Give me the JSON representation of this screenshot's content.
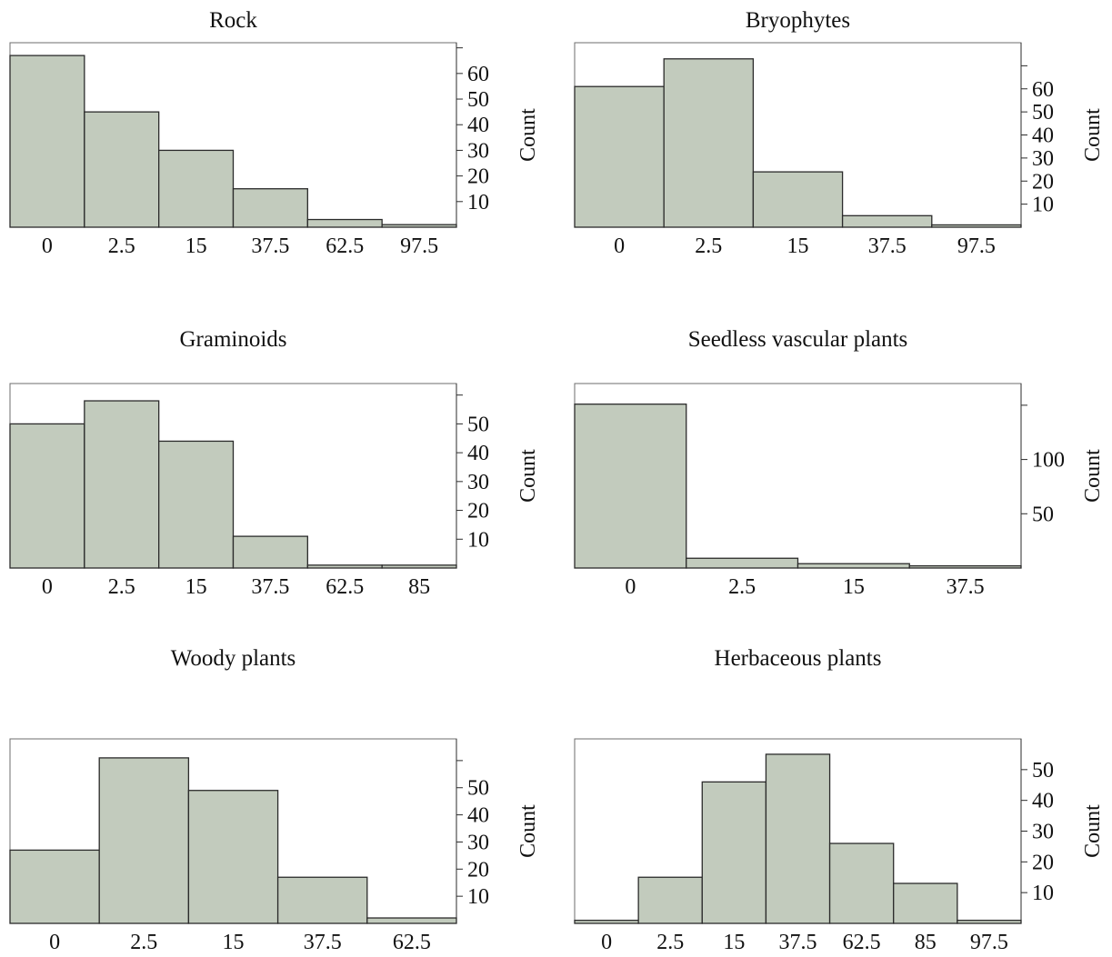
{
  "colors": {
    "bar_fill": "#c2cbbd",
    "bar_edge": "#2b2b2b",
    "frame": "#6d6d6d"
  },
  "chart_data": [
    {
      "type": "bar",
      "title": "Rock",
      "ylabel": "Count",
      "categories": [
        "0",
        "2.5",
        "15",
        "37.5",
        "62.5",
        "97.5"
      ],
      "values": [
        67,
        45,
        30,
        15,
        3,
        1
      ],
      "yticks": [
        10,
        20,
        30,
        40,
        50,
        60
      ],
      "ylim": [
        0,
        72
      ],
      "grid": false,
      "y_axis_side": "right"
    },
    {
      "type": "bar",
      "title": "Bryophytes",
      "ylabel": "Count",
      "categories": [
        "0",
        "2.5",
        "15",
        "37.5",
        "97.5"
      ],
      "values": [
        61,
        73,
        24,
        5,
        1
      ],
      "yticks": [
        10,
        20,
        30,
        40,
        50,
        60
      ],
      "ylim": [
        0,
        80
      ],
      "grid": false,
      "y_axis_side": "right"
    },
    {
      "type": "bar",
      "title": "Graminoids",
      "ylabel": "Count",
      "categories": [
        "0",
        "2.5",
        "15",
        "37.5",
        "62.5",
        "85"
      ],
      "values": [
        50,
        58,
        44,
        11,
        1,
        1
      ],
      "yticks": [
        10,
        20,
        30,
        40,
        50
      ],
      "ylim": [
        0,
        64
      ],
      "grid": false,
      "y_axis_side": "right"
    },
    {
      "type": "bar",
      "title": "Seedless vascular plants",
      "ylabel": "Count",
      "categories": [
        "0",
        "2.5",
        "15",
        "37.5"
      ],
      "values": [
        151,
        9,
        4,
        2
      ],
      "yticks": [
        50,
        100
      ],
      "ylim": [
        0,
        170
      ],
      "grid": false,
      "y_axis_side": "right"
    },
    {
      "type": "bar",
      "title": "Woody plants",
      "ylabel": "Count",
      "categories": [
        "0",
        "2.5",
        "15",
        "37.5",
        "62.5"
      ],
      "values": [
        27,
        61,
        49,
        17,
        2
      ],
      "yticks": [
        10,
        20,
        30,
        40,
        50
      ],
      "ylim": [
        0,
        68
      ],
      "grid": false,
      "y_axis_side": "right"
    },
    {
      "type": "bar",
      "title": "Herbaceous plants",
      "ylabel": "Count",
      "categories": [
        "0",
        "2.5",
        "15",
        "37.5",
        "62.5",
        "85",
        "97.5"
      ],
      "values": [
        1,
        15,
        46,
        55,
        26,
        13,
        1
      ],
      "yticks": [
        10,
        20,
        30,
        40,
        50
      ],
      "ylim": [
        0,
        60
      ],
      "grid": false,
      "y_axis_side": "right"
    }
  ]
}
